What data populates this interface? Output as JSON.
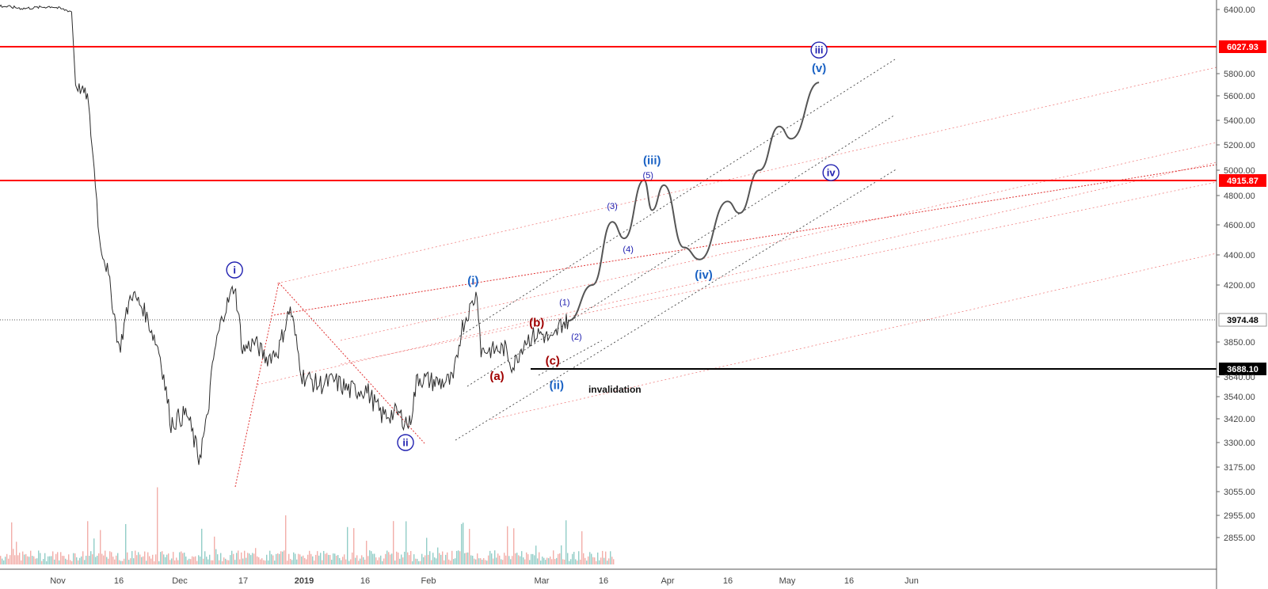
{
  "chart_data": {
    "type": "line",
    "title": "",
    "xlabel": "",
    "ylabel": "",
    "x_ticks": [
      "Nov",
      "16",
      "Dec",
      "17",
      "2019",
      "16",
      "Feb",
      "Mar",
      "16",
      "Apr",
      "16",
      "May",
      "16",
      "Jun"
    ],
    "y_ticks": [
      "6400.00",
      "5800.00",
      "5600.00",
      "5400.00",
      "5200.00",
      "5000.00",
      "4800.00",
      "4600.00",
      "4400.00",
      "4200.00",
      "3850.00",
      "3640.00",
      "3540.00",
      "3420.00",
      "3300.00",
      "3175.00",
      "3055.00",
      "2955.00",
      "2855.00"
    ],
    "price_levels": [
      {
        "label": "6027.93",
        "value": 6027.93,
        "color": "#ff0000"
      },
      {
        "label": "4915.87",
        "value": 4915.87,
        "color": "#ff0000"
      },
      {
        "label": "3974.48",
        "value": 3974.48,
        "color": "#222222"
      },
      {
        "label": "3688.10",
        "value": 3688.1,
        "color": "#000000"
      }
    ],
    "price_series": [
      {
        "x": "2018-10-25",
        "y": 6440
      },
      {
        "x": "2018-11-01",
        "y": 6410
      },
      {
        "x": "2018-11-08",
        "y": 6430
      },
      {
        "x": "2018-11-13",
        "y": 6380
      },
      {
        "x": "2018-11-14",
        "y": 5700
      },
      {
        "x": "2018-11-17",
        "y": 5600
      },
      {
        "x": "2018-11-19",
        "y": 4900
      },
      {
        "x": "2018-11-20",
        "y": 4500
      },
      {
        "x": "2018-11-22",
        "y": 4300
      },
      {
        "x": "2018-11-25",
        "y": 3800
      },
      {
        "x": "2018-11-28",
        "y": 4150
      },
      {
        "x": "2018-12-01",
        "y": 4050
      },
      {
        "x": "2018-12-05",
        "y": 3800
      },
      {
        "x": "2018-12-08",
        "y": 3400
      },
      {
        "x": "2018-12-12",
        "y": 3450
      },
      {
        "x": "2018-12-15",
        "y": 3220
      },
      {
        "x": "2018-12-17",
        "y": 3400
      },
      {
        "x": "2018-12-19",
        "y": 3800
      },
      {
        "x": "2018-12-21",
        "y": 4000
      },
      {
        "x": "2018-12-24",
        "y": 4200
      },
      {
        "x": "2018-12-26",
        "y": 3800
      },
      {
        "x": "2018-12-29",
        "y": 3850
      },
      {
        "x": "2019-01-01",
        "y": 3750
      },
      {
        "x": "2019-01-04",
        "y": 3800
      },
      {
        "x": "2019-01-07",
        "y": 4050
      },
      {
        "x": "2019-01-10",
        "y": 3650
      },
      {
        "x": "2019-01-14",
        "y": 3600
      },
      {
        "x": "2019-01-18",
        "y": 3620
      },
      {
        "x": "2019-01-22",
        "y": 3570
      },
      {
        "x": "2019-01-26",
        "y": 3580
      },
      {
        "x": "2019-01-30",
        "y": 3440
      },
      {
        "x": "2019-02-03",
        "y": 3450
      },
      {
        "x": "2019-02-06",
        "y": 3390
      },
      {
        "x": "2019-02-08",
        "y": 3640
      },
      {
        "x": "2019-02-13",
        "y": 3610
      },
      {
        "x": "2019-02-17",
        "y": 3620
      },
      {
        "x": "2019-02-19",
        "y": 3920
      },
      {
        "x": "2019-02-23",
        "y": 4150
      },
      {
        "x": "2019-02-24",
        "y": 3800
      },
      {
        "x": "2019-02-27",
        "y": 3800
      },
      {
        "x": "2019-03-02",
        "y": 3810
      },
      {
        "x": "2019-03-04",
        "y": 3700
      },
      {
        "x": "2019-03-07",
        "y": 3860
      },
      {
        "x": "2019-03-11",
        "y": 3900
      },
      {
        "x": "2019-03-14",
        "y": 3850
      },
      {
        "x": "2019-03-16",
        "y": 3950
      },
      {
        "x": "2019-03-18",
        "y": 3974
      }
    ],
    "projection": [
      {
        "x": "2019-03-18",
        "y": 3970
      },
      {
        "x": "2019-03-24",
        "y": 4200
      },
      {
        "x": "2019-03-29",
        "y": 4620
      },
      {
        "x": "2019-04-01",
        "y": 4510
      },
      {
        "x": "2019-04-06",
        "y": 4920
      },
      {
        "x": "2019-04-08",
        "y": 4700
      },
      {
        "x": "2019-04-11",
        "y": 4880
      },
      {
        "x": "2019-04-16",
        "y": 4450
      },
      {
        "x": "2019-04-20",
        "y": 4370
      },
      {
        "x": "2019-04-27",
        "y": 4760
      },
      {
        "x": "2019-04-30",
        "y": 4680
      },
      {
        "x": "2019-05-05",
        "y": 5000
      },
      {
        "x": "2019-05-10",
        "y": 5350
      },
      {
        "x": "2019-05-13",
        "y": 5250
      },
      {
        "x": "2019-05-20",
        "y": 5720
      }
    ],
    "wave_labels": [
      {
        "text": "i",
        "x": "2018-12-24",
        "y": 4300,
        "color": "#2020b0",
        "circled": true
      },
      {
        "text": "ii",
        "x": "2019-02-05",
        "y": 3300,
        "color": "#2020b0",
        "circled": true
      },
      {
        "text": "iii",
        "x": "2019-05-20",
        "y": 6000,
        "color": "#2020b0",
        "circled": true
      },
      {
        "text": "iv",
        "x": "2019-05-23",
        "y": 4980,
        "color": "#2020b0",
        "circled": true
      },
      {
        "text": "(i)",
        "x": "2019-02-22",
        "y": 4230,
        "color": "#1a62c4"
      },
      {
        "text": "(ii)",
        "x": "2019-03-15",
        "y": 3600,
        "color": "#1a62c4"
      },
      {
        "text": "(iii)",
        "x": "2019-04-08",
        "y": 5080,
        "color": "#1a62c4"
      },
      {
        "text": "(iv)",
        "x": "2019-04-21",
        "y": 4270,
        "color": "#1a62c4"
      },
      {
        "text": "(v)",
        "x": "2019-05-20",
        "y": 5850,
        "color": "#1a62c4"
      },
      {
        "text": "(a)",
        "x": "2019-02-28",
        "y": 3645,
        "color": "#a00000"
      },
      {
        "text": "(b)",
        "x": "2019-03-10",
        "y": 3960,
        "color": "#a00000"
      },
      {
        "text": "(c)",
        "x": "2019-03-14",
        "y": 3740,
        "color": "#a00000"
      },
      {
        "text": "(1)",
        "x": "2019-03-17",
        "y": 4090,
        "color": "#2020b0"
      },
      {
        "text": "(2)",
        "x": "2019-03-20",
        "y": 3880,
        "color": "#2020b0"
      },
      {
        "text": "(3)",
        "x": "2019-03-29",
        "y": 4730,
        "color": "#2020b0"
      },
      {
        "text": "(4)",
        "x": "2019-04-02",
        "y": 4440,
        "color": "#2020b0"
      },
      {
        "text": "(5)",
        "x": "2019-04-07",
        "y": 4960,
        "color": "#2020b0"
      }
    ],
    "annotations": [
      {
        "text": "invalidation",
        "x": "2019-03-23",
        "y": 3560
      }
    ],
    "colors": {
      "price": "#2b2b2b",
      "projection": "#555555",
      "level": "#ff0000",
      "volume_up": "#7fc4bd",
      "volume_down": "#f0a09a"
    }
  }
}
